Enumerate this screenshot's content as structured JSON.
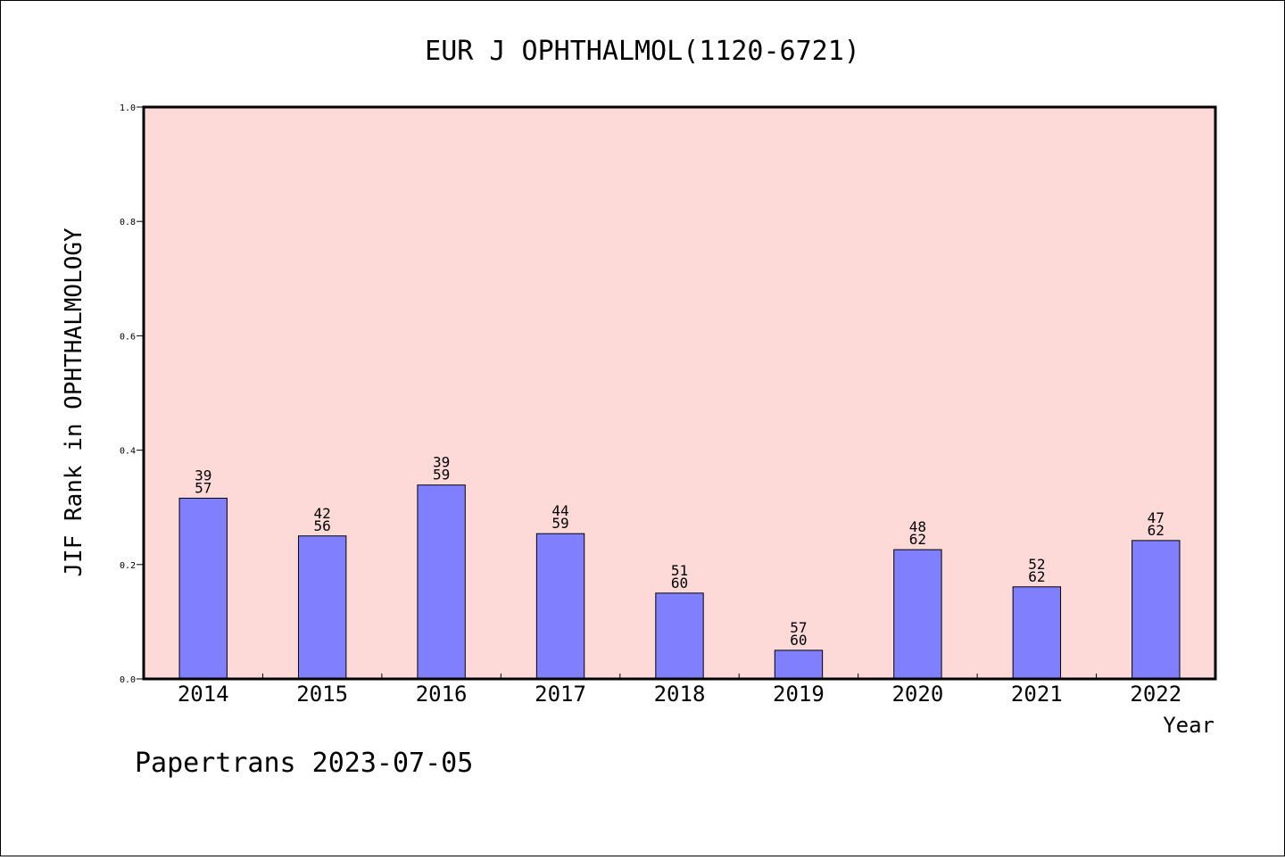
{
  "chart_data": {
    "type": "bar",
    "title": "EUR J OPHTHALMOL(1120-6721)",
    "ylabel": "JIF Rank in OPHTHALMOLOGY",
    "xlabel": "Year",
    "categories": [
      "2014",
      "2015",
      "2016",
      "2017",
      "2018",
      "2019",
      "2020",
      "2021",
      "2022"
    ],
    "values": [
      0.316,
      0.25,
      0.339,
      0.254,
      0.15,
      0.05,
      0.226,
      0.161,
      0.242
    ],
    "labels": [
      {
        "rank": "39",
        "total": "57"
      },
      {
        "rank": "42",
        "total": "56"
      },
      {
        "rank": "39",
        "total": "59"
      },
      {
        "rank": "44",
        "total": "59"
      },
      {
        "rank": "51",
        "total": "60"
      },
      {
        "rank": "57",
        "total": "60"
      },
      {
        "rank": "48",
        "total": "62"
      },
      {
        "rank": "52",
        "total": "62"
      },
      {
        "rank": "47",
        "total": "62"
      }
    ],
    "ylim": [
      0,
      1.0
    ],
    "yticks": [
      "0.0",
      "0.2",
      "0.4",
      "0.6",
      "0.8",
      "1.0"
    ],
    "grid": false,
    "colors": {
      "plot_background": "#fddad7",
      "bar_fill": "#8080ff",
      "bar_stroke": "#000000"
    }
  },
  "footer": {
    "text": "Papertrans 2023-07-05"
  }
}
